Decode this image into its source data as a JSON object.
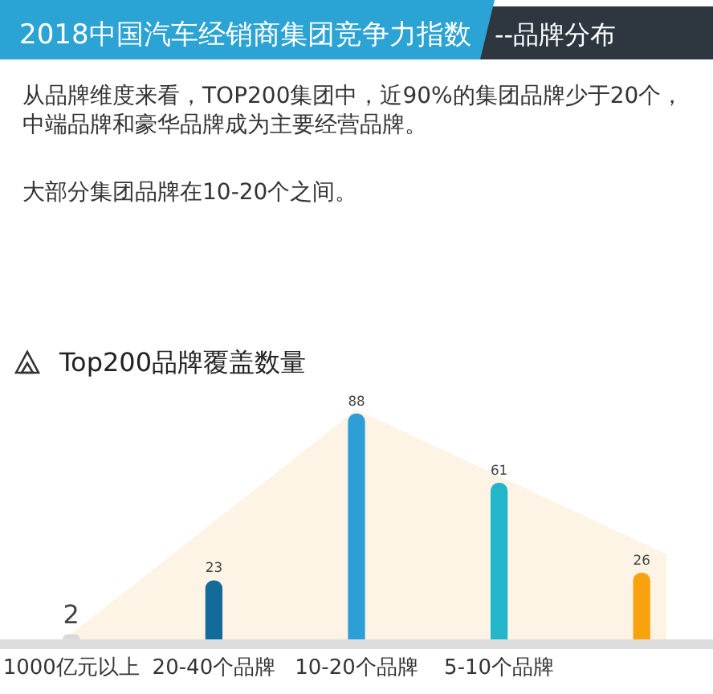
{
  "chart_data": {
    "type": "bar",
    "title": "2018中国汽车经销商集团竞争力指数",
    "subtitle": "--品牌分布",
    "annotations": [
      "从品牌维度来看，TOP200集团中，近90%的集团品牌少于20个，中端品牌和豪华品牌成为主要经营品牌。",
      "大部分集团品牌在10-20个之间。",
      "Top200品牌覆盖数量"
    ],
    "categories": [
      "1000亿元以上",
      "20-40个品牌",
      "10-20个品牌",
      "5-10个品牌",
      null
    ],
    "values": [
      2,
      23,
      88,
      61,
      26
    ],
    "colors": [
      "#d9d9d9",
      "#146a99",
      "#2e9fd6",
      "#23b5ca",
      "#f8a20e"
    ],
    "data_labels": true,
    "tick_labels": "x"
  }
}
